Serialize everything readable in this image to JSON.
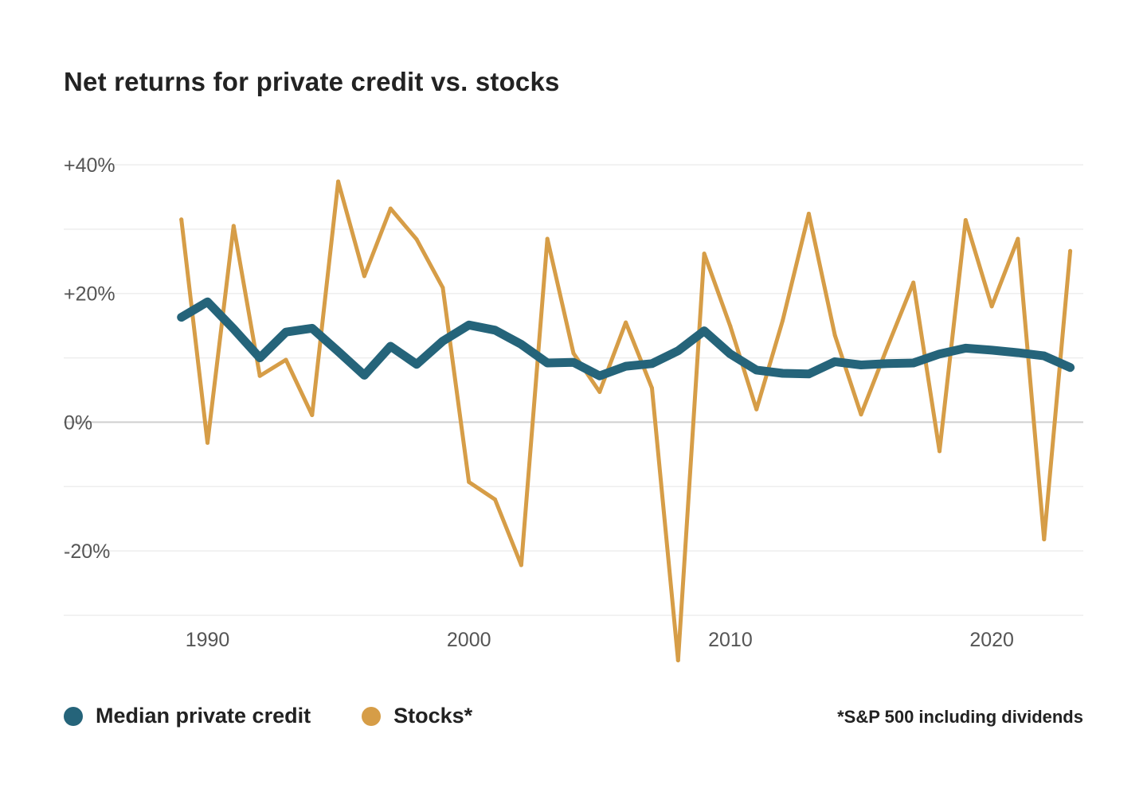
{
  "chart_data": {
    "type": "line",
    "title": "Net returns for private credit vs. stocks",
    "xlabel": "",
    "ylabel": "",
    "xlim": [
      1984.5,
      2023.5
    ],
    "ylim": [
      -30,
      40
    ],
    "y_ticks": [
      {
        "value": 40,
        "label": "+40%",
        "labeled": true
      },
      {
        "value": 30,
        "label": "",
        "labeled": false
      },
      {
        "value": 20,
        "label": "+20%",
        "labeled": true
      },
      {
        "value": 10,
        "label": "",
        "labeled": false
      },
      {
        "value": 0,
        "label": "0%",
        "labeled": true
      },
      {
        "value": -10,
        "label": "",
        "labeled": false
      },
      {
        "value": -20,
        "label": "-20%",
        "labeled": true
      },
      {
        "value": -30,
        "label": "",
        "labeled": false
      }
    ],
    "x_ticks": [
      {
        "value": 1990,
        "label": "1990"
      },
      {
        "value": 2000,
        "label": "2000"
      },
      {
        "value": 2010,
        "label": "2010"
      },
      {
        "value": 2020,
        "label": "2020"
      }
    ],
    "x": [
      1989,
      1990,
      1991,
      1992,
      1993,
      1994,
      1995,
      1996,
      1997,
      1998,
      1999,
      2000,
      2001,
      2002,
      2003,
      2004,
      2005,
      2006,
      2007,
      2008,
      2009,
      2010,
      2011,
      2012,
      2013,
      2014,
      2015,
      2016,
      2017,
      2018,
      2019,
      2020,
      2021,
      2022,
      2023
    ],
    "series": [
      {
        "name": "Median private credit",
        "color": "#25647a",
        "values": [
          16.3,
          18.7,
          14.5,
          10.0,
          14.0,
          14.6,
          11.0,
          7.3,
          11.8,
          9.0,
          12.6,
          15.1,
          14.3,
          12.1,
          9.2,
          9.3,
          7.2,
          8.7,
          9.1,
          11.1,
          14.2,
          10.6,
          8.1,
          7.6,
          7.5,
          9.4,
          8.9,
          9.1,
          9.2,
          10.6,
          11.5,
          11.2,
          10.8,
          10.3,
          8.5
        ]
      },
      {
        "name": "Stocks*",
        "color": "#d69d47",
        "values": [
          31.5,
          -3.2,
          30.5,
          7.2,
          9.7,
          1.1,
          37.4,
          22.7,
          33.2,
          28.4,
          20.9,
          -9.3,
          -12.0,
          -22.2,
          28.5,
          10.7,
          4.7,
          15.5,
          5.3,
          -37.0,
          26.2,
          14.9,
          2.0,
          15.8,
          32.4,
          13.5,
          1.2,
          11.6,
          21.7,
          -4.5,
          31.4,
          18.0,
          28.5,
          -18.2,
          26.6
        ]
      }
    ],
    "legend_position": "bottom-left",
    "footnote": "*S&P 500 including dividends"
  }
}
